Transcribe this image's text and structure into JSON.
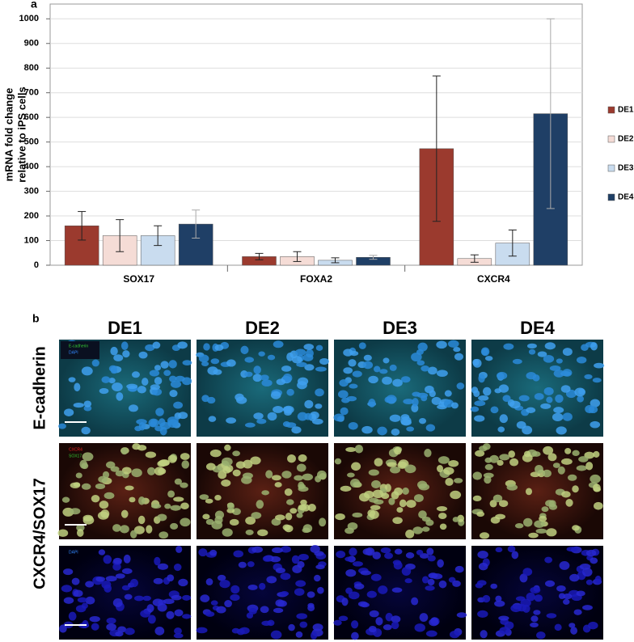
{
  "chart_data": {
    "type": "bar",
    "panel_label": "a",
    "y_label": [
      "mRNA fold change",
      "relative to iPS cells"
    ],
    "categories": [
      "SOX17",
      "FOXA2",
      "CXCR4"
    ],
    "series": [
      {
        "name": "DE1",
        "color": "#9b3a2e",
        "values": [
          160,
          35,
          473
        ],
        "errors": [
          58,
          13,
          295
        ]
      },
      {
        "name": "DE2",
        "color": "#f5dcd6",
        "values": [
          120,
          35,
          27
        ],
        "errors": [
          65,
          20,
          15
        ]
      },
      {
        "name": "DE3",
        "color": "#c9dcef",
        "values": [
          120,
          20,
          90
        ],
        "errors": [
          40,
          10,
          53
        ]
      },
      {
        "name": "DE4",
        "color": "#1f3f66",
        "values": [
          167,
          32,
          615
        ],
        "errors": [
          57,
          8,
          385
        ]
      }
    ],
    "ylim": [
      0,
      1060
    ],
    "yticks": [
      0,
      100,
      200,
      300,
      400,
      500,
      600,
      700,
      800,
      900,
      1000
    ],
    "grid": true
  },
  "figure_b": {
    "panel_label": "b",
    "columns": [
      "DE1",
      "DE2",
      "DE3",
      "DE4"
    ],
    "row_labels": [
      "E-cadherin",
      "CXCR4/SOX17"
    ],
    "insets": [
      [
        "E-cadherin",
        "DAPI"
      ],
      [
        "CXCR4",
        "SOX17"
      ],
      [
        "DAPI"
      ]
    ]
  }
}
